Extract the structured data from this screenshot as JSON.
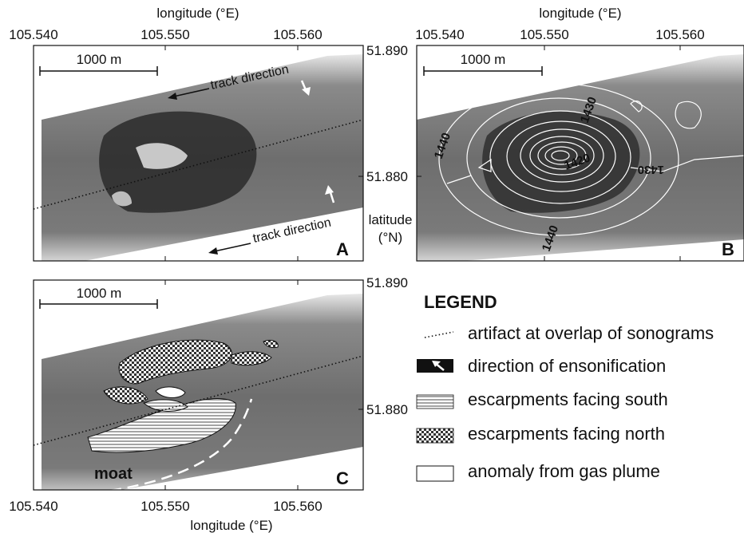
{
  "panels": {
    "A": {
      "letter": "A",
      "scale_bar": "1000 m",
      "track_label_top": "track direction",
      "track_label_bottom": "track direction"
    },
    "B": {
      "letter": "B",
      "scale_bar": "1000 m",
      "contours": [
        "1440",
        "1430",
        "1420",
        "1430",
        "1440"
      ]
    },
    "C": {
      "letter": "C",
      "scale_bar": "1000 m",
      "moat_label": "moat"
    }
  },
  "axes": {
    "longitude_title": "longitude (°E)",
    "longitude_ticks": [
      "105.540",
      "105.550",
      "105.560"
    ],
    "latitude_ticks": [
      "51.890",
      "51.880"
    ],
    "latitude_title_line1": "latitude",
    "latitude_title_line2": "(°N)"
  },
  "legend": {
    "title": "LEGEND",
    "items": [
      {
        "label": "artifact at overlap of sonograms",
        "symbol": "dotted-line"
      },
      {
        "label": "direction of ensonification",
        "symbol": "black-box-arrow"
      },
      {
        "label": "escarpments facing south",
        "symbol": "horizontal-hatch"
      },
      {
        "label": "escarpments facing north",
        "symbol": "checker-hatch"
      },
      {
        "label": "anomaly from gas plume",
        "symbol": "empty-box"
      }
    ]
  }
}
